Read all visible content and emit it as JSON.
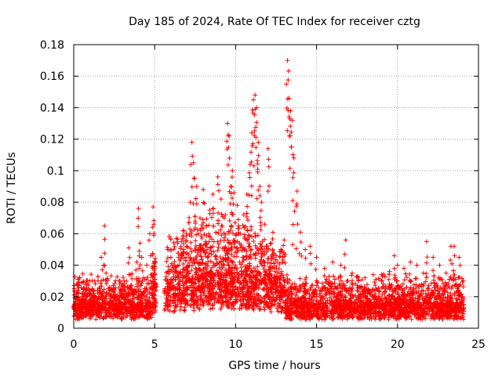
{
  "chart_data": {
    "type": "scatter",
    "title": "Day 185 of 2024, Rate Of TEC Index for receiver cztg",
    "xlabel": "GPS time / hours",
    "ylabel": "ROTI / TECUs",
    "xlim": [
      0,
      25
    ],
    "ylim": [
      0,
      0.18
    ],
    "x_ticks": [
      0,
      5,
      10,
      15,
      20,
      25
    ],
    "x_tick_labels": [
      "0",
      "5",
      "10",
      "15",
      "20",
      "25"
    ],
    "y_ticks": [
      0,
      0.02,
      0.04,
      0.06,
      0.08,
      0.1,
      0.12,
      0.14,
      0.16,
      0.18
    ],
    "y_tick_labels": [
      "0",
      "0.02",
      "0.04",
      "0.06",
      "0.08",
      "0.1",
      "0.12",
      "0.14",
      "0.16",
      "0.18"
    ],
    "grid": true,
    "marker": "+",
    "colors": {
      "points": "#ff0000",
      "grid": "#a0a0a0",
      "axis": "#000000"
    },
    "gap_hours": [
      5.1,
      5.6
    ],
    "series": [
      {
        "name": "ROTI",
        "x": [
          0.1,
          0.3,
          0.5,
          0.8,
          1.0,
          1.2,
          1.5,
          1.7,
          1.9,
          2.0,
          2.2,
          2.5,
          2.8,
          3.0,
          3.4,
          3.5,
          3.9,
          4.0,
          4.1,
          4.2,
          4.3,
          4.5,
          4.7,
          4.9,
          4.95,
          5.0,
          5.8,
          6.0,
          6.2,
          6.5,
          6.8,
          7.0,
          7.2,
          7.3,
          7.4,
          7.5,
          7.6,
          7.8,
          8.0,
          8.2,
          8.4,
          8.6,
          8.9,
          9.1,
          9.3,
          9.5,
          9.6,
          9.7,
          9.8,
          9.9,
          10.1,
          10.3,
          10.5,
          10.7,
          10.9,
          11.0,
          11.1,
          11.2,
          11.3,
          11.4,
          11.5,
          11.6,
          11.8,
          12.0,
          12.2,
          12.5,
          12.8,
          13.0,
          13.2,
          13.3,
          13.4,
          13.5,
          13.6,
          13.8,
          14.0,
          14.3,
          14.6,
          15.0,
          15.5,
          16.0,
          16.5,
          16.8,
          17.2,
          17.6,
          18.0,
          18.5,
          19.0,
          19.5,
          19.8,
          20.0,
          20.4,
          20.8,
          21.2,
          21.6,
          21.8,
          22.2,
          22.6,
          23.0,
          23.3,
          23.5,
          23.8,
          24.0
        ],
        "y": [
          0.012,
          0.018,
          0.022,
          0.028,
          0.03,
          0.024,
          0.03,
          0.045,
          0.065,
          0.035,
          0.026,
          0.024,
          0.03,
          0.022,
          0.051,
          0.034,
          0.042,
          0.076,
          0.054,
          0.045,
          0.032,
          0.04,
          0.06,
          0.077,
          0.066,
          0.038,
          0.05,
          0.045,
          0.04,
          0.04,
          0.05,
          0.035,
          0.08,
          0.118,
          0.105,
          0.068,
          0.09,
          0.07,
          0.088,
          0.065,
          0.075,
          0.085,
          0.096,
          0.082,
          0.07,
          0.13,
          0.122,
          0.09,
          0.1,
          0.086,
          0.078,
          0.06,
          0.072,
          0.085,
          0.104,
          0.124,
          0.145,
          0.148,
          0.14,
          0.118,
          0.09,
          0.08,
          0.066,
          0.114,
          0.054,
          0.046,
          0.05,
          0.056,
          0.17,
          0.146,
          0.138,
          0.132,
          0.108,
          0.087,
          0.061,
          0.05,
          0.052,
          0.045,
          0.038,
          0.042,
          0.04,
          0.056,
          0.035,
          0.03,
          0.032,
          0.034,
          0.03,
          0.036,
          0.046,
          0.04,
          0.038,
          0.042,
          0.04,
          0.035,
          0.055,
          0.045,
          0.04,
          0.035,
          0.052,
          0.052,
          0.045,
          0.02
        ]
      }
    ],
    "background_band": {
      "median": 0.012,
      "spread": 0.012,
      "description": "dense low-level ROTI values across all hours except the gap"
    }
  }
}
